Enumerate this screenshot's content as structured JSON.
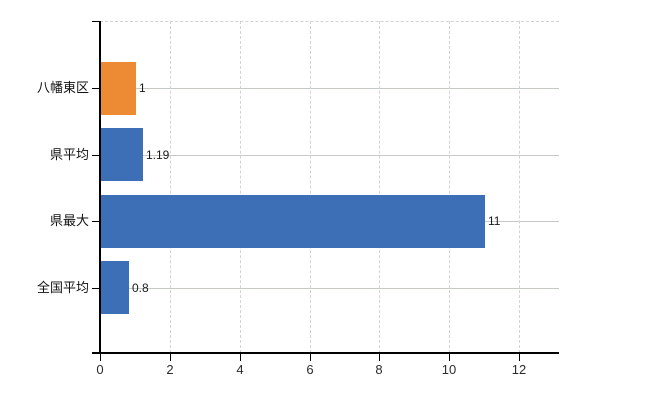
{
  "chart_data": {
    "type": "bar",
    "orientation": "horizontal",
    "title": "",
    "xlabel": "",
    "ylabel": "",
    "categories": [
      "八幡東区",
      "県平均",
      "県最大",
      "全国平均"
    ],
    "values": [
      1,
      1.19,
      11,
      0.8
    ],
    "value_labels": [
      "1",
      "1.19",
      "11",
      "0.8"
    ],
    "bar_colors": [
      "#EC8B33",
      "#3C6FB6",
      "#3C6FB6",
      "#3C6FB6"
    ],
    "x_ticks": [
      0,
      2,
      4,
      6,
      8,
      10,
      12
    ],
    "x_tick_labels": [
      "0",
      "2",
      "4",
      "6",
      "8",
      "10",
      "12"
    ],
    "xlim": [
      0,
      13.15
    ],
    "grid": true,
    "grid_vertical_style": "dashed",
    "grid_horizontal_style": "solid",
    "legend": false,
    "legend_position": "none",
    "background_color": "#ffffff"
  },
  "colors": {
    "axis": "#000000",
    "horizontal_grid": "#c5cbc4",
    "vertical_grid": "#d7d1d3",
    "category_text": "#111111",
    "value_text": "#1a1a1a",
    "tick_text": "#2b2b2b"
  }
}
